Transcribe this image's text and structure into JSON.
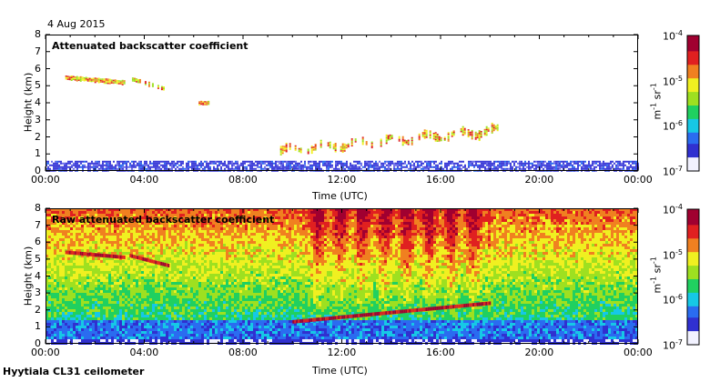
{
  "date_label": "4 Aug 2015",
  "footer": "Hyytiala CL31 ceilometer",
  "colorbar": {
    "ticks": [
      {
        "base": "10",
        "exp": "-4"
      },
      {
        "base": "10",
        "exp": "-5"
      },
      {
        "base": "10",
        "exp": "-6"
      },
      {
        "base": "10",
        "exp": "-7"
      }
    ],
    "unit_main": "m",
    "unit_exp1": "-1",
    "unit_mid": " sr",
    "unit_exp2": "-1",
    "colors": [
      "#f2f2ff",
      "#3030d0",
      "#2a6cf0",
      "#16c8e6",
      "#20d060",
      "#9ee020",
      "#f0f020",
      "#f08020",
      "#e02020",
      "#a00030",
      "#6a0070"
    ]
  },
  "chart_data": [
    {
      "type": "heatmap",
      "title": "Attenuated backscatter coefficient",
      "xlabel": "Time (UTC)",
      "ylabel": "Height (km)",
      "x_ticks": [
        "00:00",
        "04:00",
        "08:00",
        "12:00",
        "16:00",
        "20:00",
        "00:00"
      ],
      "y_ticks": [
        "0",
        "1",
        "2",
        "3",
        "4",
        "5",
        "6",
        "7",
        "8"
      ],
      "xlim": [
        0,
        24
      ],
      "ylim": [
        0,
        8
      ],
      "color_scale": "log",
      "clim": [
        1e-07,
        0.0001
      ],
      "features": [
        {
          "name": "upper cloud",
          "t_start": 0.8,
          "t_end": 3.2,
          "h_start": 5.5,
          "h_end": 5.2
        },
        {
          "name": "cloud fragments",
          "t_start": 3.5,
          "t_end": 4.9,
          "h_start": 5.4,
          "h_end": 4.8
        },
        {
          "name": "cloud fragment",
          "t_start": 6.2,
          "t_end": 6.6,
          "h_start": 4.0,
          "h_end": 4.0
        },
        {
          "name": "low cloud",
          "t_start": 9.5,
          "t_end": 18.3,
          "h_start": 1.2,
          "h_end": 2.4
        },
        {
          "name": "boundary layer",
          "t_start": 0,
          "t_end": 24,
          "h_start": 0,
          "h_end": 0.6
        }
      ]
    },
    {
      "type": "heatmap",
      "title": "Raw attenuated backscatter coefficient",
      "xlabel": "Time (UTC)",
      "ylabel": "Height (km)",
      "x_ticks": [
        "00:00",
        "04:00",
        "08:00",
        "12:00",
        "16:00",
        "20:00",
        "00:00"
      ],
      "y_ticks": [
        "0",
        "1",
        "2",
        "3",
        "4",
        "5",
        "6",
        "7",
        "8"
      ],
      "xlim": [
        0,
        24
      ],
      "ylim": [
        0,
        8
      ],
      "color_scale": "log",
      "clim": [
        1e-07,
        0.0001
      ]
    }
  ]
}
